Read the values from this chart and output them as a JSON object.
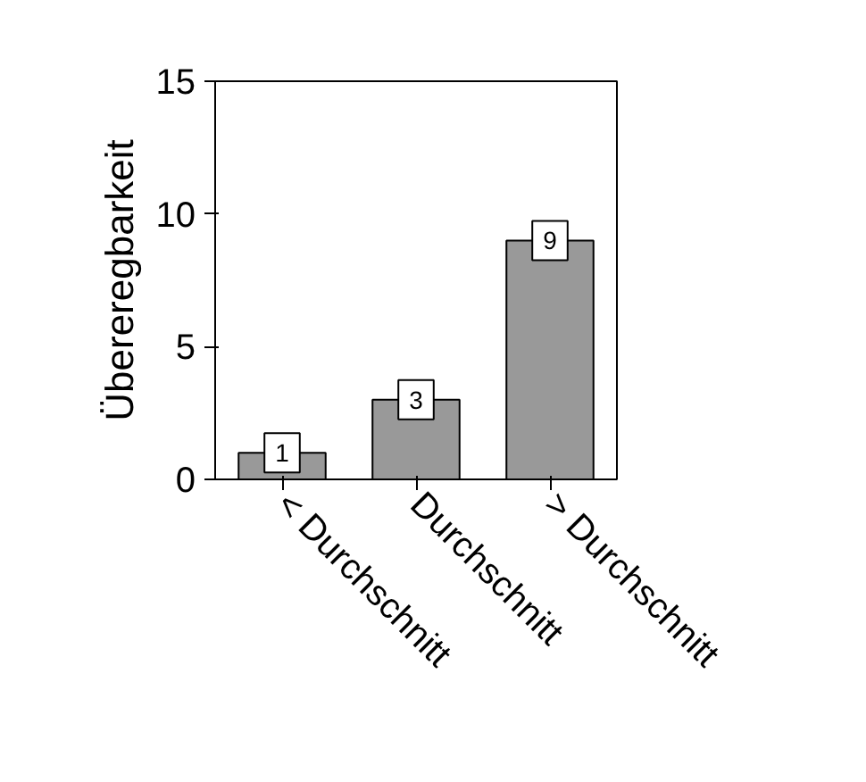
{
  "chart_data": {
    "type": "bar",
    "ylabel": "Übereregbarkeit",
    "categories": [
      "< Durchschnitt",
      "Durchschnitt",
      "> Durchschnitt"
    ],
    "values": [
      1,
      3,
      9
    ],
    "color": "#999999",
    "ylim": [
      0,
      15
    ],
    "yticks": [
      0,
      5,
      10,
      15
    ],
    "data_labels": true,
    "grid": false
  }
}
